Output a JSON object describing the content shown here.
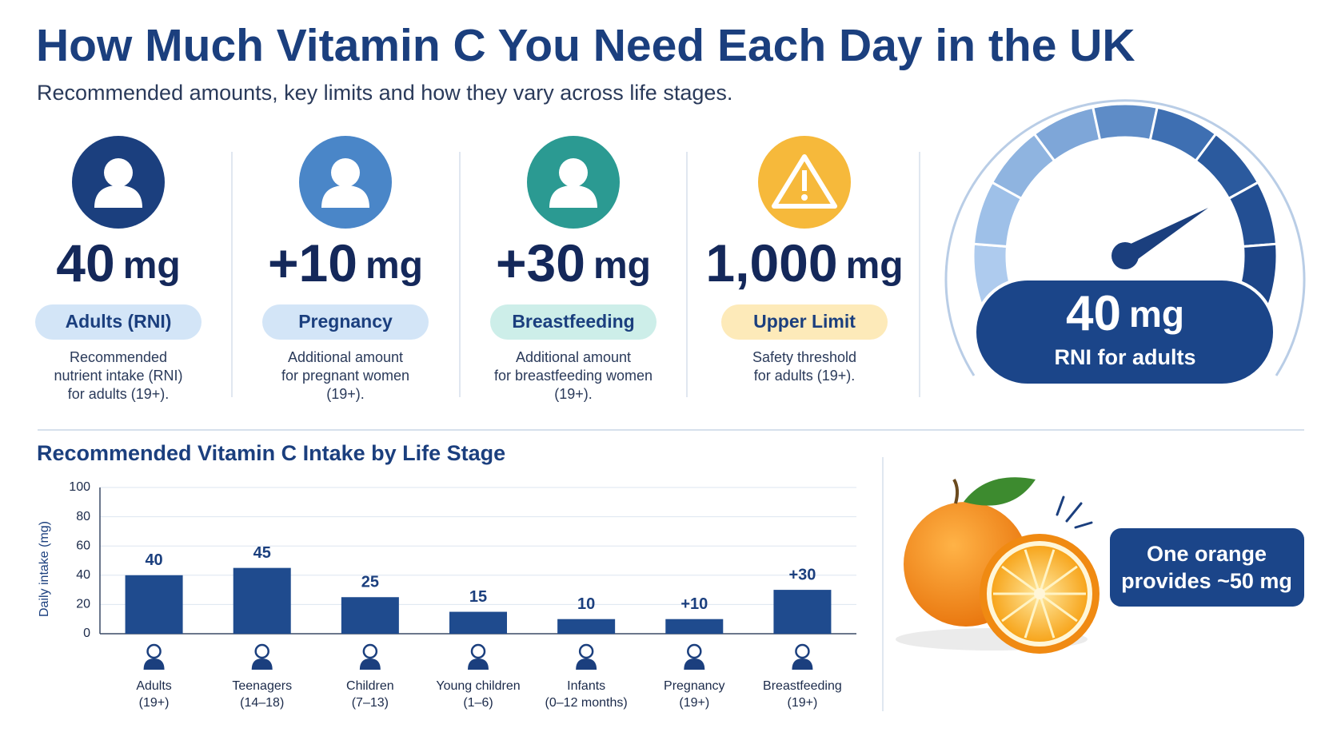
{
  "header": {
    "title": "How Much Vitamin C You Need Each Day in the UK",
    "subtitle": "Recommended amounts, key limits and how they vary across life stages."
  },
  "cards": [
    {
      "value": "40",
      "unit": "mg",
      "label": "Adults (RNI)",
      "description": [
        "Recommended",
        "nutrient intake (RNI)",
        "for adults (19+)."
      ]
    },
    {
      "value": "+10",
      "unit": "mg",
      "label": "Pregnancy",
      "description": [
        "Additional amount",
        "for pregnant women",
        "(19+)."
      ]
    },
    {
      "value": "+30",
      "unit": "mg",
      "label": "Breastfeeding",
      "description": [
        "Additional amount",
        "for breastfeeding women",
        "(19+)."
      ]
    },
    {
      "value": "1,000",
      "unit": "mg",
      "label": "Upper Limit",
      "description": [
        "Safety threshold",
        "for adults (19+)."
      ]
    }
  ],
  "gauge": {
    "value": "40",
    "unit": "mg",
    "label": "RNI for adults"
  },
  "chart_data": {
    "type": "bar",
    "title": "Recommended Vitamin C Intake by Life Stage",
    "y_label": "Daily intake (mg)",
    "categories": [
      "Adults",
      "Teenagers",
      "Children",
      "Young children",
      "Infants",
      "Pregnancy",
      "Breastfeeding"
    ],
    "category_notes": [
      "(19+)",
      "(14–18)",
      "(7–13)",
      "(1–6)",
      "(0–12 months)",
      "(19+)",
      "(19+)"
    ],
    "values": [
      40,
      45,
      25,
      15,
      10,
      10,
      30
    ],
    "value_labels": [
      "40",
      "45",
      "25",
      "15",
      "10",
      "+10",
      "+30"
    ],
    "color": "#1f4b8e",
    "ylim": [
      0,
      100
    ],
    "yticks": [
      0,
      20,
      40,
      60,
      80,
      100
    ],
    "grid": true
  },
  "callout": {
    "lines": [
      "One orange",
      "provides ~50 mg"
    ]
  }
}
